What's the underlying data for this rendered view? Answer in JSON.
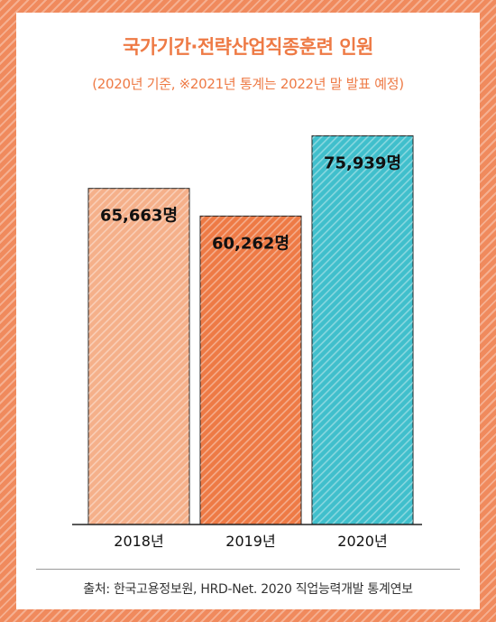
{
  "title": "국가기간·전략산업직종훈련 인원",
  "subtitle": "(2020년 기준, ※2021년 통계는 2022년 말 발표 예정)",
  "source": "출처: 한국고용정보원, HRD-Net. 2020 직업능력개발 통계연보",
  "colors": {
    "accent": "#ee7a45",
    "bar_2018": "#f5b08a",
    "bar_2019": "#ee7a45",
    "bar_2020": "#40bfcc"
  },
  "chart_data": {
    "type": "bar",
    "title": "국가기간·전략산업직종훈련 인원",
    "categories": [
      "2018년",
      "2019년",
      "2020년"
    ],
    "values": [
      65663,
      60262,
      75939
    ],
    "value_labels": [
      "65,663명",
      "60,262명",
      "75,939명"
    ],
    "ylim": [
      0,
      100000
    ],
    "grid": false,
    "legend": "none"
  }
}
